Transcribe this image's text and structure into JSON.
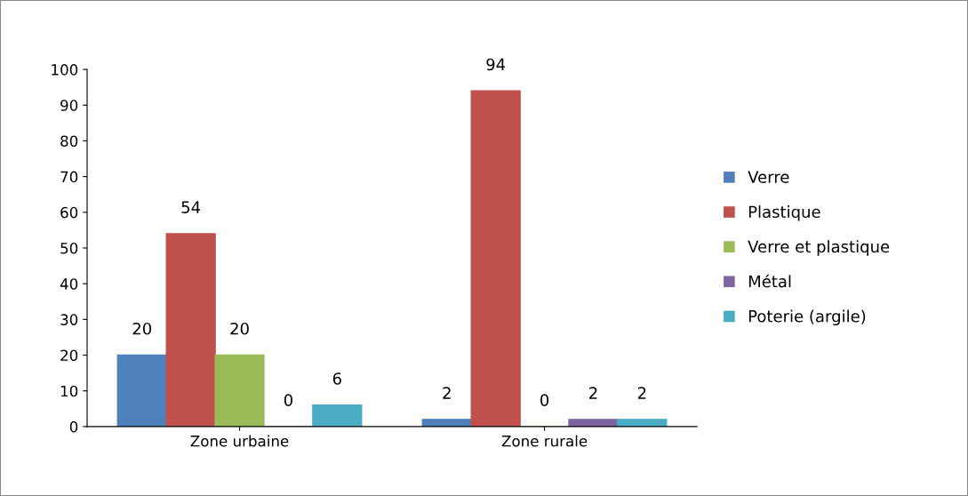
{
  "chart_data": {
    "type": "bar",
    "categories": [
      "Zone urbaine",
      "Zone rurale"
    ],
    "series": [
      {
        "name": "Verre",
        "color": "#4f81bd",
        "values": [
          20,
          2
        ]
      },
      {
        "name": "Plastique",
        "color": "#c0504d",
        "values": [
          54,
          94
        ]
      },
      {
        "name": "Verre et plastique",
        "color": "#9bbb59",
        "values": [
          20,
          0
        ]
      },
      {
        "name": "Métal",
        "color": "#8064a2",
        "values": [
          0,
          2
        ]
      },
      {
        "name": "Poterie (argile)",
        "color": "#4bacc6",
        "values": [
          6,
          2
        ]
      }
    ],
    "ylim": [
      0,
      100
    ],
    "yticks": [
      0,
      10,
      20,
      30,
      40,
      50,
      60,
      70,
      80,
      90,
      100
    ],
    "data_labels": true,
    "legend": "right",
    "grid": false
  }
}
